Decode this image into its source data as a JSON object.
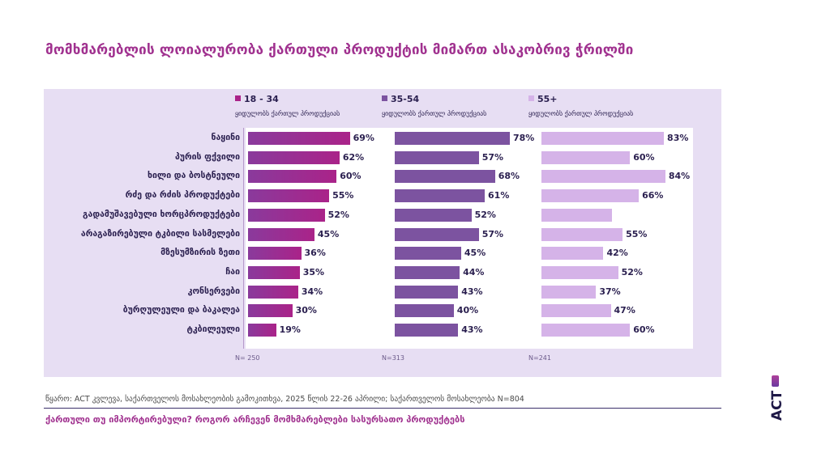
{
  "title": "მომხმარებლის ლოიალურობა ქართული პროდუქტის მიმართ ასაკობრივ ჭრილში",
  "source": "წყარო: ACT კვლევა, საქართველოს მოსახლეობის გამოკითხვა, 2025 წლის 22-26 აპრილი; საქართველოს მოსახლეობა N=804",
  "subtitle": "ქართული თუ იმპორტირებული? როგორ არჩევენ მომხმარებლები სასურსათო პროდუქტებს",
  "logo": "ACT",
  "colors": {
    "title": "#a0318f",
    "group_18_34_start": "#8a3a9c",
    "group_18_34_end": "#aa2389",
    "group_35_54": "#7c53a0",
    "group_55_plus": "#d5b3e8",
    "panel_bg": "#e7def3",
    "text_dark": "#2a1f4f"
  },
  "chart_data": {
    "type": "bar",
    "orientation": "horizontal",
    "title": "მომხმარებლის ლოიალურობა ქართული პროდუქტის მიმართ ასაკობრივ ჭრილში",
    "xlabel": "",
    "ylabel": "",
    "xlim": [
      0,
      100
    ],
    "unit": "%",
    "grid": false,
    "legend_position": "top",
    "categories": [
      "ნაყინი",
      "პურის ფქვილი",
      "ხილი და ბოსტნეული",
      "რძე და რძის პროდუქტები",
      "გადამუშავებული ხორცპროდუქტები",
      "არაგაზირებული ტკბილი სასმელები",
      "მზესუმზირის ზეთი",
      "ჩაი",
      "კონსერვები",
      "ბურღულეული და ბაკალეა",
      "ტკბილეული"
    ],
    "series": [
      {
        "name": "18 - 34",
        "subtitle": "ყიდულობს ქართულ პროდუქციას",
        "n_label": "N= 250",
        "values": [
          69,
          62,
          60,
          55,
          52,
          45,
          36,
          35,
          34,
          30,
          19
        ],
        "labels": [
          "69%",
          "62%",
          "60%",
          "55%",
          "52%",
          "45%",
          "36%",
          "35%",
          "34%",
          "30%",
          "19%"
        ]
      },
      {
        "name": "35-54",
        "subtitle": "ყიდულობს ქართულ პროდუქციას",
        "n_label": "N=313",
        "values": [
          78,
          57,
          68,
          61,
          52,
          57,
          45,
          44,
          43,
          40,
          43
        ],
        "labels": [
          "78%",
          "57%",
          "68%",
          "61%",
          "52%",
          "57%",
          "45%",
          "44%",
          "43%",
          "40%",
          "43%"
        ]
      },
      {
        "name": "55+",
        "subtitle": "ყიდულობს ქართულ პროდუქციას",
        "n_label": "N=241",
        "values": [
          83,
          60,
          84,
          66,
          48,
          55,
          42,
          52,
          37,
          47,
          60
        ],
        "labels": [
          "83%",
          "60%",
          "84%",
          "66%",
          "",
          "55%",
          "42%",
          "52%",
          "37%",
          "47%",
          "60%"
        ]
      }
    ]
  }
}
